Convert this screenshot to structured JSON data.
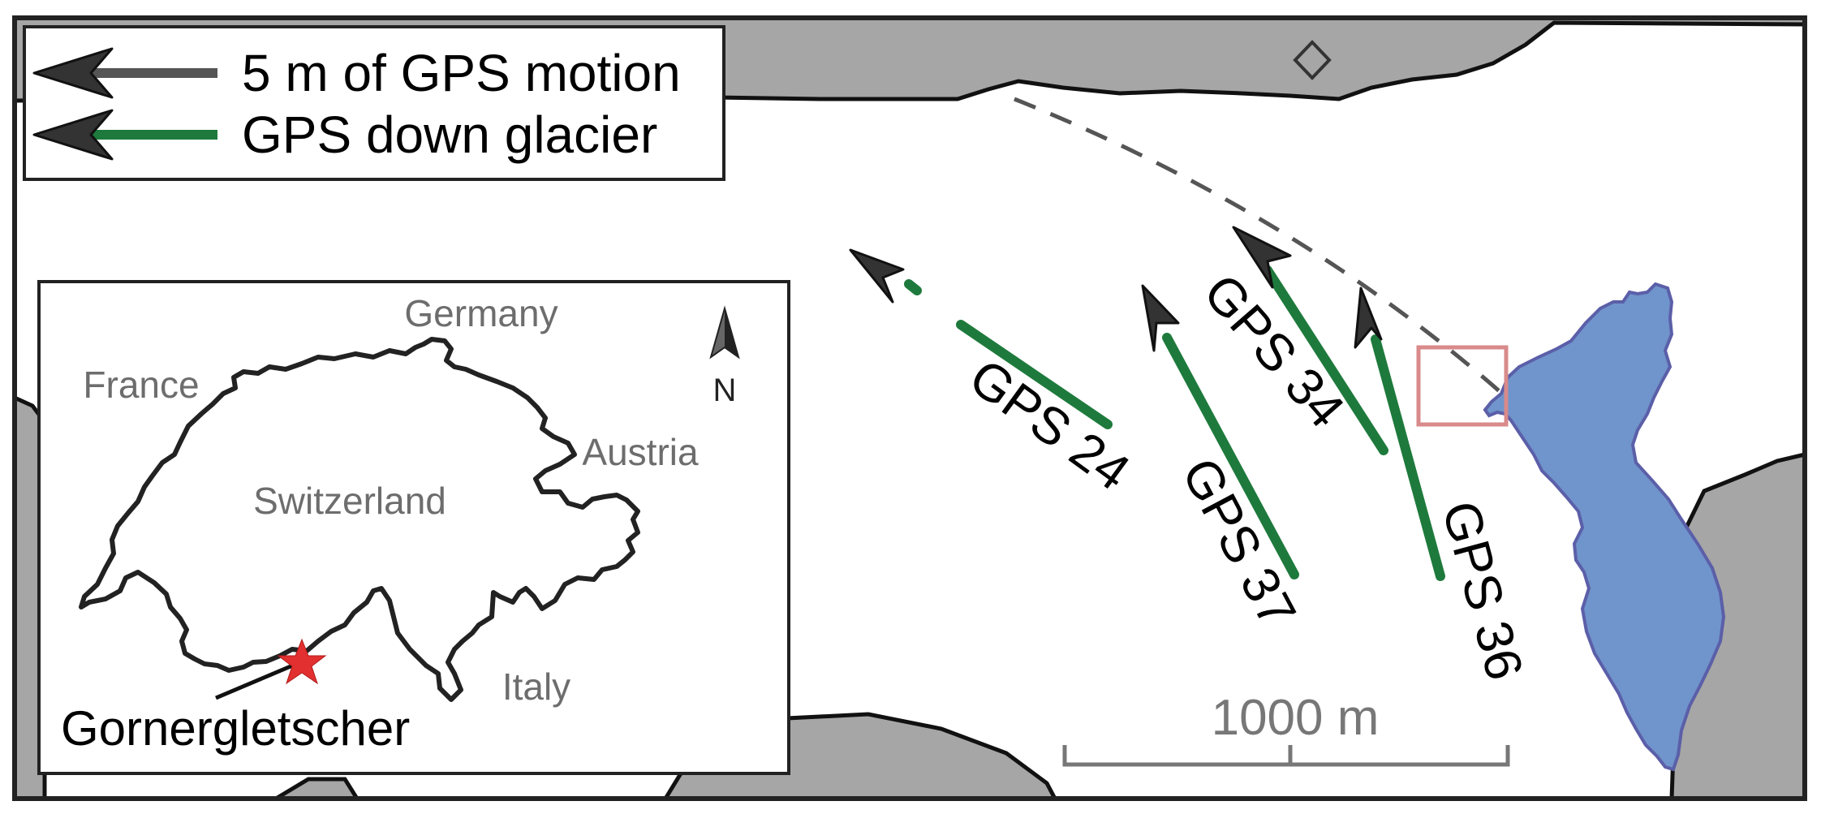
{
  "legend": {
    "gps_motion_label": "5 m of GPS motion",
    "down_glacier_label": "GPS down glacier"
  },
  "stations": [
    {
      "id": "gps-24",
      "label": "GPS 24"
    },
    {
      "id": "gps-34",
      "label": "GPS 34"
    },
    {
      "id": "gps-37",
      "label": "GPS 37"
    },
    {
      "id": "gps-36",
      "label": "GPS 36"
    }
  ],
  "scale_bar": {
    "label": "1000 m"
  },
  "inset": {
    "countries": {
      "germany": "Germany",
      "france": "France",
      "austria": "Austria",
      "switzerland": "Switzerland",
      "italy": "Italy"
    },
    "north_label": "N",
    "site_label": "Gornergletscher"
  },
  "colors": {
    "rock": "#a6a6a6",
    "lake_fill": "#7094cc",
    "lake_edge": "#5b5fa8",
    "gps_track": "#1e7a3c",
    "arrow": "#333333",
    "motion_line": "#555555",
    "dashed_line": "#555555",
    "study_box": "#d98a8a",
    "site_star": "#e23030",
    "country_label": "#6d6d6d",
    "scale_bar": "#777777"
  },
  "icons": {
    "north_arrow": "north-arrow-icon",
    "site_marker": "star-icon",
    "reference_point": "diamond-icon"
  }
}
